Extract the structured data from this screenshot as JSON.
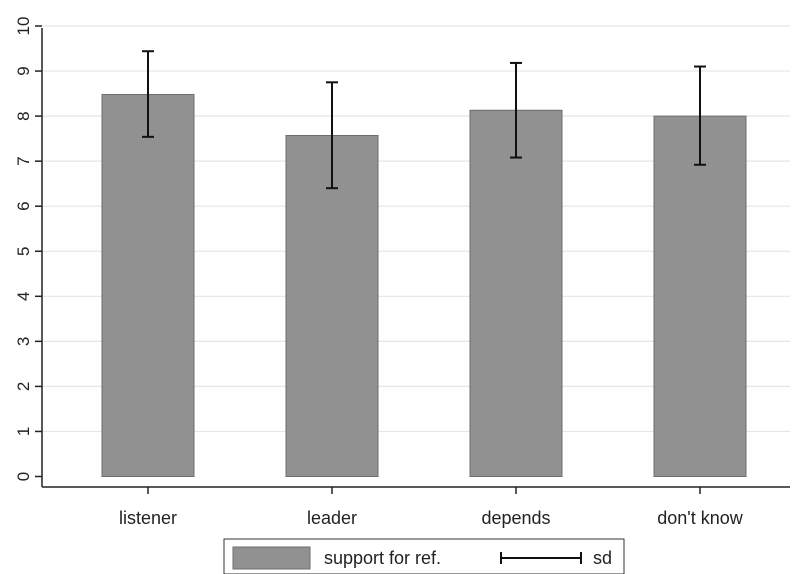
{
  "chart_data": {
    "type": "bar",
    "categories": [
      "listener",
      "leader",
      "depends",
      "don't know"
    ],
    "series": [
      {
        "name": "support for ref.",
        "values": [
          8.48,
          7.57,
          8.13,
          8.0
        ],
        "sd_low": [
          7.54,
          6.4,
          7.08,
          6.92
        ],
        "sd_high": [
          9.44,
          8.75,
          9.18,
          9.1
        ]
      }
    ],
    "error_bar_label": "sd",
    "xlabel": "",
    "ylabel": "",
    "ylim": [
      0,
      10
    ],
    "yticks": [
      0,
      1,
      2,
      3,
      4,
      5,
      6,
      7,
      8,
      9,
      10
    ],
    "grid": true,
    "legend_position": "bottom",
    "colors": {
      "bar": "#919191",
      "bar_edge": "#6e6e6e",
      "grid": "#e6e6e6",
      "axis": "#222222",
      "errorbar": "#111111"
    }
  }
}
